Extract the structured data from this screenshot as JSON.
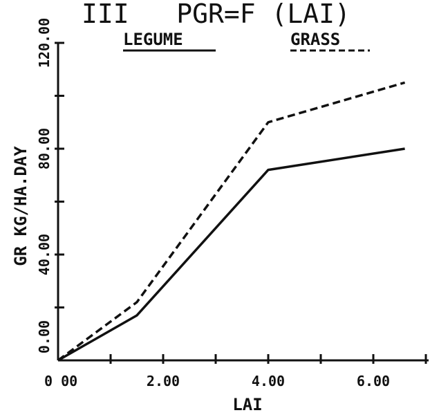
{
  "chart_data": {
    "type": "line",
    "title": "III   PGR=F (LAI)",
    "xlabel": "LAI",
    "ylabel": "GR KG/HA.DAY",
    "xlim": [
      0,
      7
    ],
    "ylim": [
      0,
      120
    ],
    "x_ticks": [
      0,
      1,
      2,
      3,
      4,
      5,
      6,
      7
    ],
    "x_tick_labels": [
      {
        "value": 0,
        "label": "0 00"
      },
      {
        "value": 2,
        "label": "2.00"
      },
      {
        "value": 4,
        "label": "4.00"
      },
      {
        "value": 6,
        "label": "6.00"
      }
    ],
    "y_ticks": [
      0,
      20,
      40,
      60,
      80,
      100,
      120
    ],
    "y_tick_labels": [
      {
        "value": 0,
        "label": "0.00"
      },
      {
        "value": 40,
        "label": "40.00"
      },
      {
        "value": 80,
        "label": "80.00"
      },
      {
        "value": 120,
        "label": "120.00"
      }
    ],
    "grid": false,
    "legend_position": "top",
    "series": [
      {
        "name": "LEGUME",
        "line_style": "solid",
        "color": "#111111",
        "points": [
          [
            0,
            0
          ],
          [
            1.5,
            17
          ],
          [
            4.0,
            72
          ],
          [
            6.6,
            80
          ]
        ]
      },
      {
        "name": "GRASS",
        "line_style": "dashed",
        "color": "#111111",
        "points": [
          [
            0,
            0
          ],
          [
            1.5,
            22
          ],
          [
            4.0,
            90
          ],
          [
            6.6,
            105
          ]
        ]
      }
    ]
  }
}
